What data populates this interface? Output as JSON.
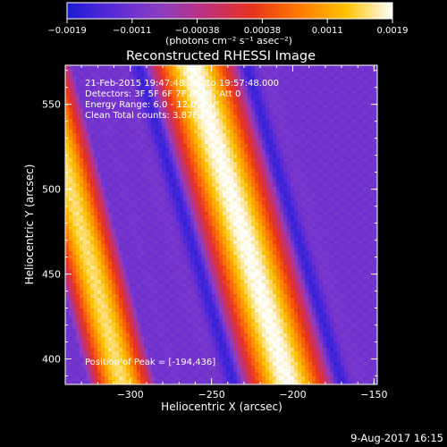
{
  "chart_data": {
    "type": "heatmap",
    "title": "Reconstructed RHESSI Image",
    "xlabel": "Heliocentric X (arcsec)",
    "ylabel": "Heliocentric Y (arcsec)",
    "xlim": [
      -340,
      -148
    ],
    "ylim": [
      385,
      573
    ],
    "x_ticks": [
      {
        "value": -300,
        "label": "−300"
      },
      {
        "value": -250,
        "label": "−250"
      },
      {
        "value": -200,
        "label": "−200"
      },
      {
        "value": -150,
        "label": "−150"
      }
    ],
    "y_ticks": [
      {
        "value": 400,
        "label": "400"
      },
      {
        "value": 450,
        "label": "450"
      },
      {
        "value": 500,
        "label": "500"
      },
      {
        "value": 550,
        "label": "550"
      }
    ],
    "colorbar": {
      "range": [
        -0.0019,
        0.0019
      ],
      "tick_labels": [
        "−0.0019",
        "−0.0011",
        "−0.00038",
        "0.00038",
        "0.0011",
        "0.0019"
      ],
      "unit_label": "(photons cm⁻² s⁻¹ asec⁻²)",
      "colors": [
        "#1c1cd6",
        "#5a2ad8",
        "#8c3ec2",
        "#c0307a",
        "#e8341c",
        "#ff7a00",
        "#ffc200",
        "#ffffff"
      ]
    },
    "annotations": [
      "21-Feb-2015 19:47:48.000 to 19:57:48.000",
      "Detectors: 3F 5F 6F 7F 8F 9F, Att 0",
      "Energy Range: 6.0 - 12.0 keV",
      "Clean     Total counts: 3.87E+04"
    ],
    "peak_label": "Position of Peak = [-194,436]",
    "peak": [
      -194,
      436
    ],
    "bands": [
      {
        "x_at_bottom": -305,
        "x_at_top": -357,
        "width": 38,
        "value": 0.0016
      },
      {
        "x_at_bottom": -203,
        "x_at_top": -262,
        "width": 52,
        "value": 0.0019
      }
    ],
    "background_value": -0.0011
  },
  "footer": {
    "date": "9-Aug-2017 16:15"
  }
}
